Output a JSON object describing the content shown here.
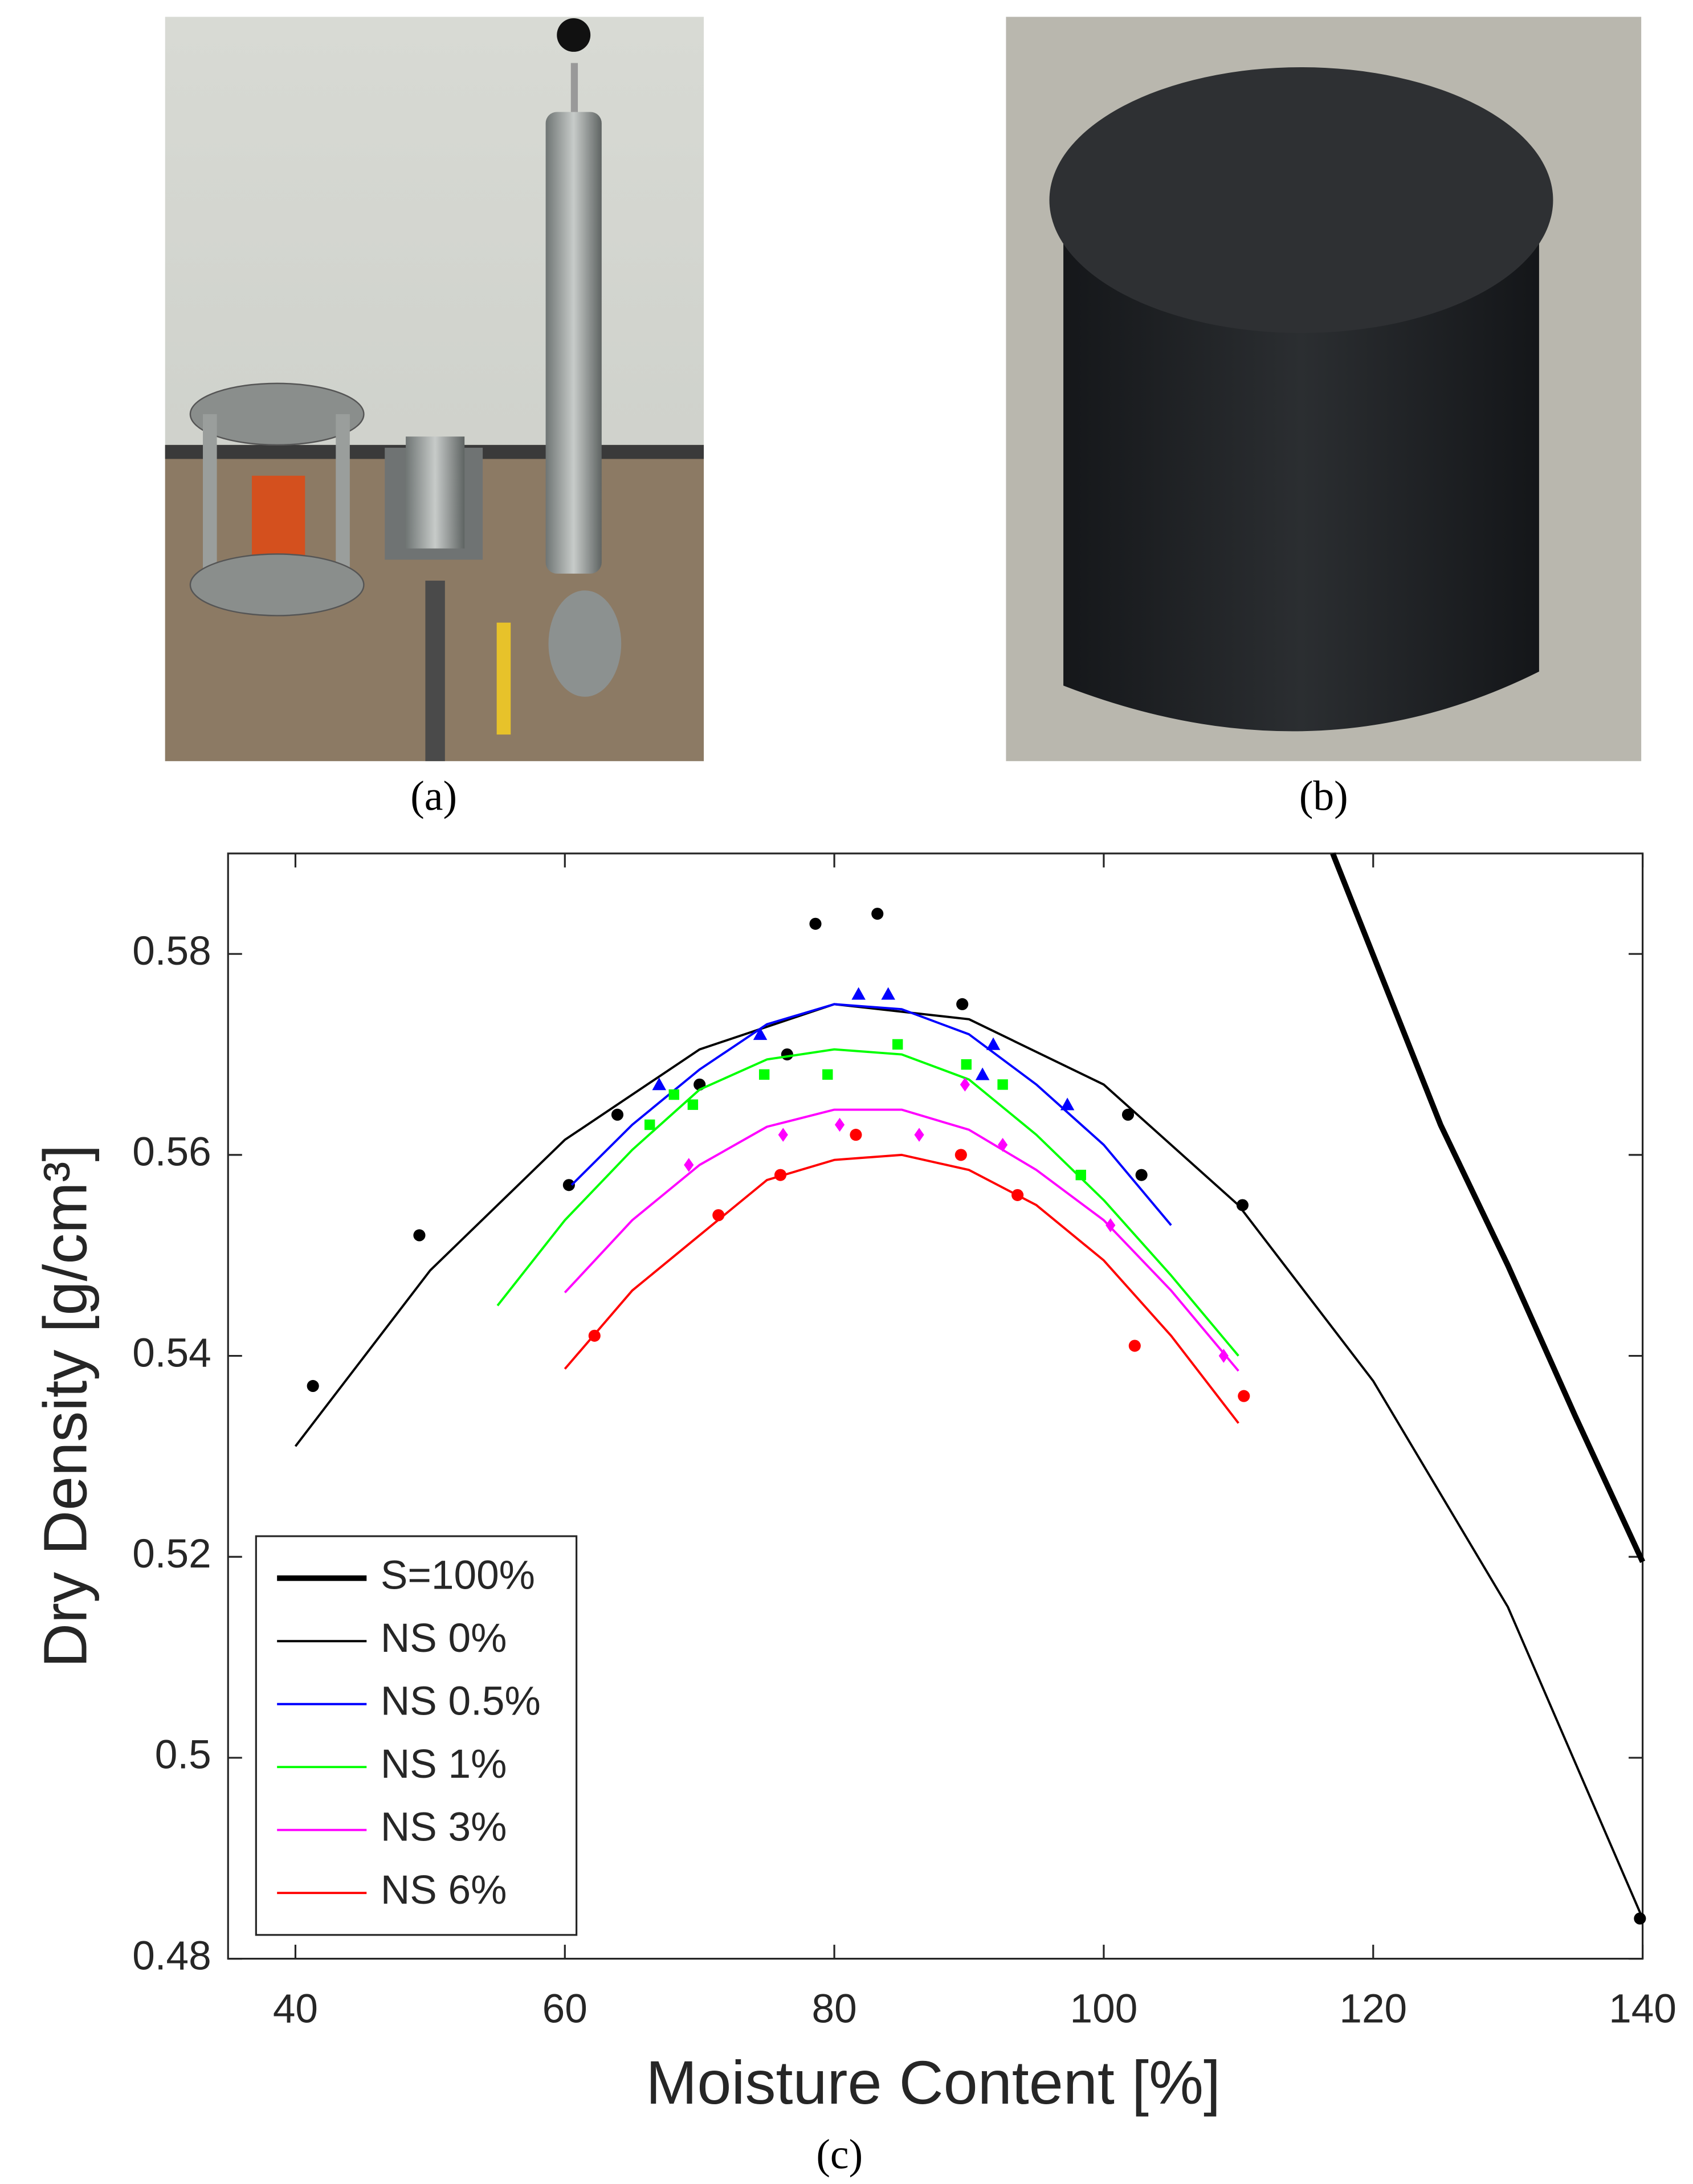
{
  "panel_labels": [
    "(a)",
    "(b)",
    "(c)"
  ],
  "chart_data": {
    "type": "scatter",
    "xlabel": "Moisture Content [%]",
    "ylabel": "Dry Density [g/cm³]",
    "xlim": [
      35,
      140
    ],
    "ylim": [
      0.48,
      0.59
    ],
    "xticks": [
      40,
      60,
      80,
      100,
      120,
      140
    ],
    "yticks": [
      0.48,
      0.5,
      0.52,
      0.54,
      0.56,
      0.58
    ],
    "legend": "lower left",
    "series": [
      {
        "name": "S=100%",
        "color": "#000000",
        "line_width": 4,
        "x": [
          117,
          125,
          130,
          135,
          140
        ],
        "values": [
          0.59,
          0.563,
          0.549,
          0.534,
          0.5195
        ]
      },
      {
        "name": "NS 0%",
        "color": "#000000",
        "line_width": 1.6,
        "marker": "circle",
        "x": [
          40,
          50,
          60,
          70,
          80,
          90,
          100,
          110,
          120,
          130,
          140
        ],
        "values": [
          0.531,
          0.5485,
          0.5615,
          0.5705,
          0.575,
          0.5735,
          0.567,
          0.555,
          0.5375,
          0.515,
          0.484
        ],
        "points_x": [
          41.3,
          49.2,
          60.3,
          63.9,
          70,
          76.5,
          78.6,
          83.2,
          89.5,
          101.8,
          102.8,
          110.3,
          139.8
        ],
        "points_y": [
          0.537,
          0.552,
          0.557,
          0.564,
          0.567,
          0.57,
          0.583,
          0.584,
          0.575,
          0.564,
          0.558,
          0.555,
          0.484
        ]
      },
      {
        "name": "NS 0.5%",
        "color": "#0000ff",
        "line_width": 1.6,
        "marker": "triangle",
        "x": [
          60.5,
          65,
          70,
          75,
          80,
          85,
          90,
          95,
          100,
          105
        ],
        "values": [
          0.557,
          0.563,
          0.5685,
          0.573,
          0.575,
          0.5745,
          0.572,
          0.567,
          0.561,
          0.553
        ],
        "points_x": [
          67,
          74.5,
          81.8,
          84,
          91,
          91.8,
          97.3
        ],
        "points_y": [
          0.567,
          0.572,
          0.576,
          0.576,
          0.568,
          0.571,
          0.565
        ]
      },
      {
        "name": "NS 1%",
        "color": "#00ff00",
        "line_width": 1.6,
        "marker": "square",
        "x": [
          55,
          60,
          65,
          70,
          75,
          80,
          85,
          90,
          95,
          100,
          105,
          110
        ],
        "values": [
          0.545,
          0.5535,
          0.5605,
          0.5665,
          0.5695,
          0.5705,
          0.57,
          0.5675,
          0.562,
          0.5555,
          0.548,
          0.54
        ],
        "points_x": [
          66.3,
          68.1,
          69.5,
          74.8,
          79.5,
          84.7,
          89.8,
          92.5,
          98.3
        ],
        "points_y": [
          0.563,
          0.566,
          0.565,
          0.568,
          0.568,
          0.571,
          0.569,
          0.567,
          0.558
        ]
      },
      {
        "name": "NS 3%",
        "color": "#ff00ff",
        "line_width": 1.6,
        "marker": "diamond",
        "x": [
          60,
          65,
          70,
          75,
          80,
          85,
          90,
          95,
          100,
          105,
          110
        ],
        "values": [
          0.5463,
          0.5535,
          0.559,
          0.5628,
          0.5645,
          0.5645,
          0.5625,
          0.5585,
          0.5535,
          0.5465,
          0.5385
        ],
        "points_x": [
          69.2,
          76.2,
          80.4,
          86.3,
          89.7,
          92.5,
          100.5,
          108.9
        ],
        "points_y": [
          0.559,
          0.562,
          0.563,
          0.562,
          0.567,
          0.561,
          0.553,
          0.54
        ]
      },
      {
        "name": "NS 6%",
        "color": "#ff0000",
        "line_width": 1.6,
        "marker": "circle",
        "x": [
          60,
          65,
          70,
          75,
          80,
          85,
          90,
          95,
          100,
          105,
          110
        ],
        "values": [
          0.5387,
          0.5465,
          0.552,
          0.5575,
          0.5595,
          0.56,
          0.5585,
          0.555,
          0.5495,
          0.542,
          0.5333
        ],
        "points_x": [
          62.2,
          71.4,
          76,
          81.6,
          89.4,
          93.6,
          102.3,
          110.4
        ],
        "points_y": [
          0.542,
          0.554,
          0.558,
          0.562,
          0.56,
          0.556,
          0.541,
          0.536
        ]
      }
    ]
  }
}
